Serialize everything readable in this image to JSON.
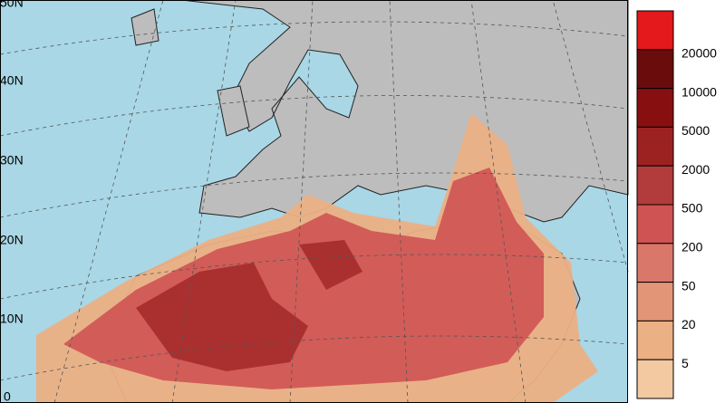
{
  "map": {
    "lat_labels": [
      "50N",
      "40N",
      "30N",
      "20N",
      "10N",
      "0"
    ]
  },
  "legend": {
    "labels": [
      20000,
      10000,
      5000,
      2000,
      500,
      200,
      50,
      20,
      5
    ],
    "colors": [
      "#e3191b",
      "#6a0c0c",
      "#880f10",
      "#9c2222",
      "#b23b3b",
      "#cf5353",
      "#d9776a",
      "#e29677",
      "#ebb084",
      "#f2c9a0"
    ]
  }
}
